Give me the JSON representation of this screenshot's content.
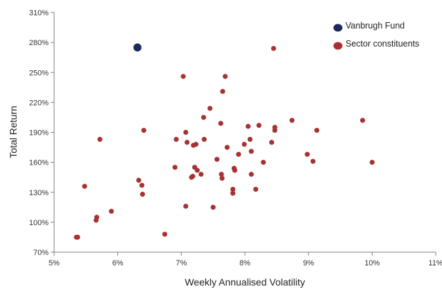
{
  "chart_data": {
    "type": "scatter",
    "title": "",
    "xlabel": "Weekly Annualised Volatility",
    "ylabel": "Total Return",
    "xlim": [
      5,
      11
    ],
    "ylim": [
      70,
      310
    ],
    "x_ticks": [
      5,
      6,
      7,
      8,
      9,
      10,
      11
    ],
    "x_tick_labels": [
      "5%",
      "6%",
      "7%",
      "8%",
      "9%",
      "10%",
      "11%"
    ],
    "y_ticks": [
      70,
      100,
      130,
      160,
      190,
      220,
      250,
      280,
      310
    ],
    "y_tick_labels": [
      "70%",
      "100%",
      "130%",
      "160%",
      "190%",
      "220%",
      "250%",
      "280%",
      "310%"
    ],
    "grid": false,
    "legend_position": "top-right",
    "series": [
      {
        "name": "Vanbrugh Fund",
        "color": "#1f2a5c",
        "marker_size": "large",
        "points": [
          [
            6.31,
            275
          ]
        ]
      },
      {
        "name": "Sector constituents",
        "color": "#a83232",
        "marker_size": "small",
        "points": [
          [
            5.35,
            85
          ],
          [
            5.37,
            85
          ],
          [
            5.48,
            136
          ],
          [
            5.66,
            102
          ],
          [
            5.67,
            105
          ],
          [
            5.72,
            183
          ],
          [
            5.9,
            111
          ],
          [
            6.33,
            142
          ],
          [
            6.38,
            137
          ],
          [
            6.39,
            128
          ],
          [
            6.41,
            192
          ],
          [
            6.74,
            88
          ],
          [
            6.9,
            155
          ],
          [
            6.92,
            183
          ],
          [
            7.03,
            246
          ],
          [
            7.07,
            116
          ],
          [
            7.07,
            190
          ],
          [
            7.09,
            180
          ],
          [
            7.16,
            145
          ],
          [
            7.18,
            146
          ],
          [
            7.19,
            177
          ],
          [
            7.21,
            155
          ],
          [
            7.23,
            178
          ],
          [
            7.25,
            152
          ],
          [
            7.31,
            148
          ],
          [
            7.35,
            205
          ],
          [
            7.36,
            183
          ],
          [
            7.45,
            214
          ],
          [
            7.5,
            115
          ],
          [
            7.56,
            163
          ],
          [
            7.62,
            199
          ],
          [
            7.63,
            148
          ],
          [
            7.64,
            144
          ],
          [
            7.65,
            231
          ],
          [
            7.69,
            246
          ],
          [
            7.72,
            175
          ],
          [
            7.81,
            129
          ],
          [
            7.81,
            133
          ],
          [
            7.83,
            154
          ],
          [
            7.84,
            152
          ],
          [
            7.9,
            168
          ],
          [
            7.99,
            178
          ],
          [
            8.05,
            196
          ],
          [
            8.08,
            183
          ],
          [
            8.1,
            148
          ],
          [
            8.1,
            171
          ],
          [
            8.17,
            133
          ],
          [
            8.22,
            197
          ],
          [
            8.29,
            160
          ],
          [
            8.42,
            180
          ],
          [
            8.45,
            274
          ],
          [
            8.47,
            195
          ],
          [
            8.47,
            192
          ],
          [
            8.74,
            202
          ],
          [
            8.98,
            168
          ],
          [
            9.07,
            161
          ],
          [
            9.13,
            192
          ],
          [
            9.85,
            202
          ],
          [
            10.0,
            160
          ]
        ]
      }
    ]
  }
}
